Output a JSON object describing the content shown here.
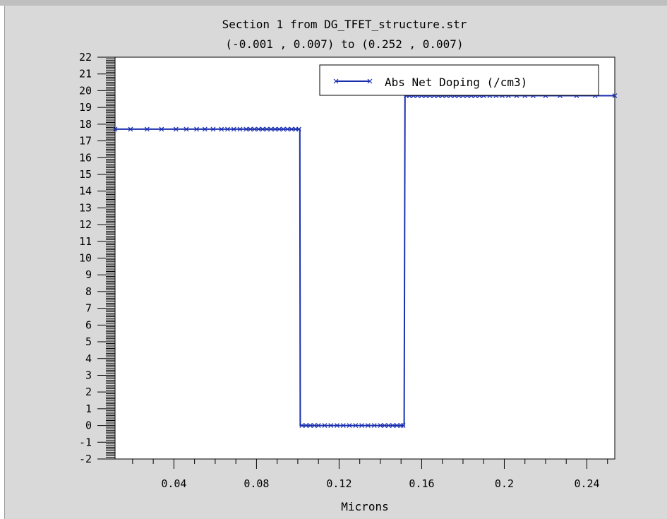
{
  "chart_data": {
    "type": "line",
    "title": "Section 1 from DG_TFET_structure.str",
    "subtitle": "(-0.001 , 0.007) to (0.252 , 0.007)",
    "xlabel": "Microns",
    "ylabel": "",
    "xlim": [
      0.0115,
      0.2535
    ],
    "ylim": [
      -2,
      22
    ],
    "x_ticks": [
      "0.04",
      "0.08",
      "0.12",
      "0.16",
      "0.2",
      "0.24"
    ],
    "x_tick_values": [
      0.04,
      0.08,
      0.12,
      0.16,
      0.2,
      0.24
    ],
    "y_ticks": [
      "22",
      "21",
      "20",
      "19",
      "18",
      "17",
      "16",
      "15",
      "14",
      "13",
      "12",
      "11",
      "10",
      "9",
      "8",
      "7",
      "6",
      "5",
      "4",
      "3",
      "2",
      "1",
      "0",
      "-1",
      "-2"
    ],
    "y_tick_values": [
      22,
      21,
      20,
      19,
      18,
      17,
      16,
      15,
      14,
      13,
      12,
      11,
      10,
      9,
      8,
      7,
      6,
      5,
      4,
      3,
      2,
      1,
      0,
      -1,
      -2
    ],
    "grid": false,
    "legend_position": "top-right",
    "series": [
      {
        "name": "Abs Net Doping (/cm3)",
        "color": "#1a2fb0",
        "marker": "x",
        "x": [
          0.0115,
          0.101,
          0.1012,
          0.1515,
          0.1517,
          0.1519,
          0.2535
        ],
        "y": [
          17.7,
          17.7,
          0.0,
          0.0,
          9.8,
          19.7,
          19.7
        ],
        "marker_x": [
          0.0115,
          0.019,
          0.027,
          0.034,
          0.041,
          0.046,
          0.051,
          0.055,
          0.059,
          0.063,
          0.066,
          0.069,
          0.072,
          0.075,
          0.077,
          0.079,
          0.081,
          0.083,
          0.085,
          0.087,
          0.089,
          0.091,
          0.093,
          0.095,
          0.097,
          0.099,
          0.1005,
          0.102,
          0.104,
          0.106,
          0.108,
          0.11,
          0.113,
          0.116,
          0.119,
          0.122,
          0.125,
          0.128,
          0.131,
          0.134,
          0.137,
          0.14,
          0.142,
          0.144,
          0.146,
          0.148,
          0.15,
          0.151,
          0.1525,
          0.154,
          0.156,
          0.158,
          0.16,
          0.162,
          0.164,
          0.166,
          0.168,
          0.17,
          0.172,
          0.174,
          0.176,
          0.178,
          0.18,
          0.182,
          0.184,
          0.186,
          0.188,
          0.19,
          0.193,
          0.196,
          0.199,
          0.202,
          0.206,
          0.21,
          0.214,
          0.22,
          0.227,
          0.235,
          0.244,
          0.2535
        ],
        "marker_y": [
          17.7,
          17.7,
          17.7,
          17.7,
          17.7,
          17.7,
          17.7,
          17.7,
          17.7,
          17.7,
          17.7,
          17.7,
          17.7,
          17.7,
          17.7,
          17.7,
          17.7,
          17.7,
          17.7,
          17.7,
          17.7,
          17.7,
          17.7,
          17.7,
          17.7,
          17.7,
          17.7,
          0.0,
          0.0,
          0.0,
          0.0,
          0.0,
          0.0,
          0.0,
          0.0,
          0.0,
          0.0,
          0.0,
          0.0,
          0.0,
          0.0,
          0.0,
          0.0,
          0.0,
          0.0,
          0.0,
          0.0,
          0.0,
          19.7,
          19.7,
          19.7,
          19.7,
          19.7,
          19.7,
          19.7,
          19.7,
          19.7,
          19.7,
          19.7,
          19.7,
          19.7,
          19.7,
          19.7,
          19.7,
          19.7,
          19.7,
          19.7,
          19.7,
          19.7,
          19.7,
          19.7,
          19.7,
          19.7,
          19.7,
          19.7,
          19.7,
          19.7,
          19.7,
          19.7,
          19.7
        ]
      }
    ]
  }
}
